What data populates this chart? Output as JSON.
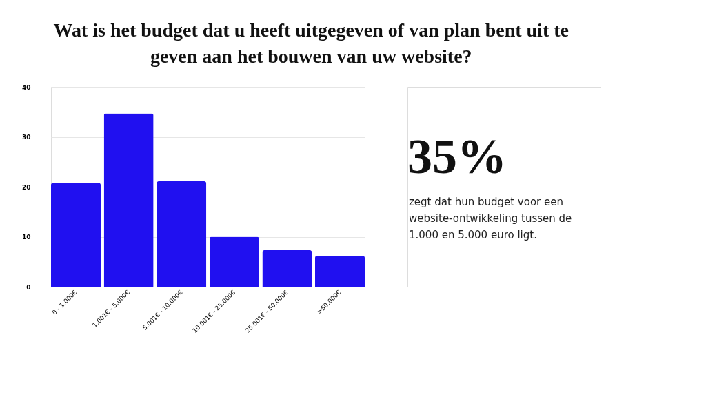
{
  "chart_data": {
    "type": "bar",
    "title": "Wat is het budget dat u heeft uitgegeven of van plan bent uit te geven aan het bouwen van uw website?",
    "categories": [
      "0 - 1.000€",
      "1.001€ - 5.000€",
      "5.001€ - 10.000€",
      "10.001€ - 25.000€",
      "25.001€ - 50.000€",
      ">50.000€"
    ],
    "values": [
      20.8,
      34.7,
      21.1,
      10.0,
      7.3,
      6.2
    ],
    "color": "#2010f0",
    "ylim": [
      0,
      40
    ],
    "yticks": [
      0,
      10,
      20,
      30,
      40
    ],
    "grid": "y",
    "annotations": [
      "35%",
      "zegt dat hun budget voor een website-ontwikkeling tussen de 1.000 en 5.000 euro ligt."
    ]
  }
}
